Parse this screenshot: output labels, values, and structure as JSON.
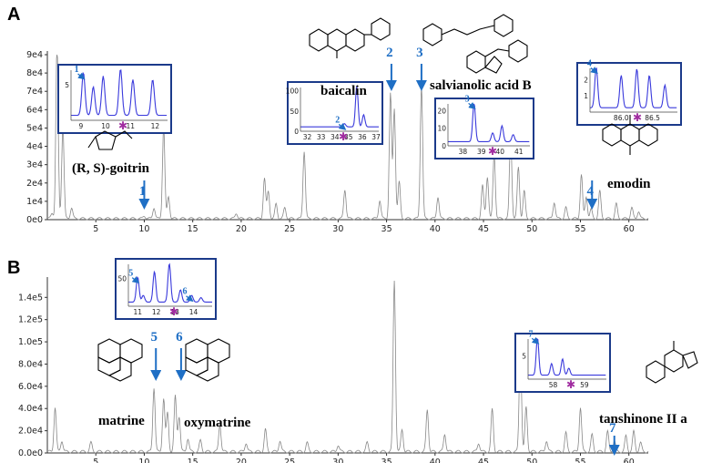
{
  "panels": [
    {
      "label": "A",
      "chart_data": {
        "type": "line",
        "title": "",
        "xlabel": "",
        "ylabel": "",
        "xlim": [
          0,
          62
        ],
        "ylim": [
          0,
          90000
        ],
        "x_ticks": [
          "5",
          "10",
          "15",
          "20",
          "25",
          "30",
          "35",
          "40",
          "45",
          "50",
          "55",
          "60"
        ],
        "y_ticks": [
          "0e0",
          "1e4",
          "2e4",
          "3e4",
          "4e4",
          "5e4",
          "6e4",
          "7e4",
          "8e4",
          "9e4"
        ],
        "series": [
          {
            "peaks": [
              [
                0.5,
                3000
              ],
              [
                1.0,
                95000
              ],
              [
                1.6,
                50000
              ],
              [
                2.5,
                6000
              ],
              [
                10.0,
                1500
              ],
              [
                11.0,
                6000
              ],
              [
                12.0,
                50000
              ],
              [
                12.5,
                12000
              ],
              [
                19.5,
                3000
              ],
              [
                22.4,
                22000
              ],
              [
                22.8,
                15000
              ],
              [
                23.6,
                8000
              ],
              [
                24.5,
                6000
              ],
              [
                26.5,
                37000
              ],
              [
                30.7,
                16000
              ],
              [
                34.3,
                10000
              ],
              [
                35.4,
                68000
              ],
              [
                35.8,
                60000
              ],
              [
                36.3,
                20000
              ],
              [
                38.6,
                73000
              ],
              [
                40.3,
                12000
              ],
              [
                44.9,
                18000
              ],
              [
                45.4,
                23000
              ],
              [
                46.1,
                35000
              ],
              [
                47.8,
                46000
              ],
              [
                48.6,
                28000
              ],
              [
                49.2,
                15000
              ],
              [
                52.3,
                9000
              ],
              [
                53.5,
                6000
              ],
              [
                55.1,
                24000
              ],
              [
                55.6,
                12000
              ],
              [
                56.1,
                5000
              ],
              [
                57.0,
                15000
              ],
              [
                58.7,
                8000
              ],
              [
                60.3,
                6000
              ],
              [
                61.0,
                4000
              ]
            ]
          }
        ],
        "markers": [
          {
            "num": "1",
            "x": 10.0,
            "compound": "(R, S)-goitrin"
          },
          {
            "num": "2",
            "x": 35.5,
            "compound": "baicalin"
          },
          {
            "num": "3",
            "x": 38.6,
            "compound": "salvianolic acid B"
          },
          {
            "num": "4",
            "x": 56.2,
            "compound": "emodin"
          }
        ],
        "insets": [
          {
            "num": "1",
            "x_ticks": [
              "9",
              "10",
              "11",
              "12"
            ],
            "y_ticks": [
              "5"
            ],
            "xlim": [
              8.6,
              12.5
            ],
            "peaks": [
              [
                9.1,
                6
              ],
              [
                9.5,
                4
              ],
              [
                9.9,
                5.5
              ],
              [
                10.6,
                6.5
              ],
              [
                11.1,
                5
              ],
              [
                11.9,
                5
              ]
            ]
          },
          {
            "num": "2",
            "x_ticks": [
              "32",
              "33",
              "34",
              "35",
              "36",
              "37"
            ],
            "y_ticks": [
              "0",
              "50",
              "100"
            ],
            "xlim": [
              31.5,
              37.2
            ],
            "peaks": [
              [
                34.7,
                8
              ],
              [
                35.6,
                100
              ],
              [
                36.1,
                30
              ]
            ]
          },
          {
            "num": "3",
            "x_ticks": [
              "38",
              "39",
              "40",
              "41"
            ],
            "y_ticks": [
              "0",
              "10",
              "20"
            ],
            "xlim": [
              37.2,
              41.6
            ],
            "peaks": [
              [
                38.6,
                22
              ],
              [
                39.6,
                5
              ],
              [
                40.1,
                9
              ],
              [
                40.7,
                4
              ]
            ]
          },
          {
            "num": "4",
            "x_ticks": [
              "86.0",
              "86.5"
            ],
            "y_ticks": [
              "1",
              "2"
            ],
            "xlim": [
              85.5,
              86.9
            ],
            "peaks": [
              [
                85.6,
                2.5
              ],
              [
                86.0,
                2.0
              ],
              [
                86.25,
                2.4
              ],
              [
                86.45,
                2.0
              ],
              [
                86.7,
                1.4
              ]
            ]
          }
        ]
      }
    },
    {
      "label": "B",
      "chart_data": {
        "type": "line",
        "title": "",
        "xlabel": "",
        "ylabel": "",
        "xlim": [
          0,
          62
        ],
        "ylim": [
          0,
          155000
        ],
        "x_ticks": [
          "5",
          "10",
          "15",
          "20",
          "25",
          "30",
          "35",
          "40",
          "45",
          "50",
          "55",
          "60"
        ],
        "y_ticks": [
          "0.0e0",
          "2.0e4",
          "4.0e4",
          "6.0e4",
          "8.0e4",
          "1.0e5",
          "1.2e5",
          "1.4e5"
        ],
        "series": [
          {
            "peaks": [
              [
                0.8,
                40000
              ],
              [
                1.5,
                10000
              ],
              [
                4.5,
                8000
              ],
              [
                11.0,
                58000
              ],
              [
                12.0,
                48000
              ],
              [
                12.4,
                35000
              ],
              [
                13.2,
                50000
              ],
              [
                13.6,
                32000
              ],
              [
                14.5,
                12000
              ],
              [
                15.8,
                10000
              ],
              [
                17.8,
                25000
              ],
              [
                20.5,
                8000
              ],
              [
                22.5,
                20000
              ],
              [
                24.0,
                10000
              ],
              [
                26.8,
                8000
              ],
              [
                30.0,
                6000
              ],
              [
                33.0,
                8000
              ],
              [
                35.8,
                155000
              ],
              [
                36.6,
                20000
              ],
              [
                39.2,
                38000
              ],
              [
                41.0,
                16000
              ],
              [
                44.5,
                8000
              ],
              [
                45.9,
                38000
              ],
              [
                48.8,
                95000
              ],
              [
                49.4,
                40000
              ],
              [
                51.5,
                10000
              ],
              [
                53.5,
                17000
              ],
              [
                55.0,
                40000
              ],
              [
                56.2,
                15000
              ],
              [
                57.8,
                18000
              ],
              [
                58.5,
                10000
              ],
              [
                59.7,
                14000
              ],
              [
                60.5,
                18000
              ],
              [
                61.2,
                8000
              ]
            ]
          }
        ],
        "markers": [
          {
            "num": "5",
            "x": 11.2,
            "compound": "matrine"
          },
          {
            "num": "6",
            "x": 13.8,
            "compound": "oxymatrine"
          },
          {
            "num": "7",
            "x": 58.5,
            "compound": "tanshinone II a"
          }
        ],
        "insets": [
          {
            "num": "5 / 6",
            "x_ticks": [
              "11",
              "12",
              "13",
              "14"
            ],
            "y_ticks": [
              "50"
            ],
            "xlim": [
              10.5,
              15.0
            ],
            "peaks": [
              [
                11.0,
                45
              ],
              [
                11.3,
                12
              ],
              [
                11.9,
                55
              ],
              [
                12.7,
                70
              ],
              [
                13.3,
                22
              ],
              [
                13.9,
                12
              ],
              [
                14.4,
                8
              ]
            ]
          },
          {
            "num": "7",
            "x_ticks": [
              "58",
              "59"
            ],
            "y_ticks": [
              "5"
            ],
            "xlim": [
              57.2,
              59.7
            ],
            "peaks": [
              [
                57.5,
                8
              ],
              [
                57.95,
                2.5
              ],
              [
                58.3,
                3.5
              ],
              [
                58.5,
                1.5
              ]
            ]
          }
        ]
      }
    }
  ]
}
